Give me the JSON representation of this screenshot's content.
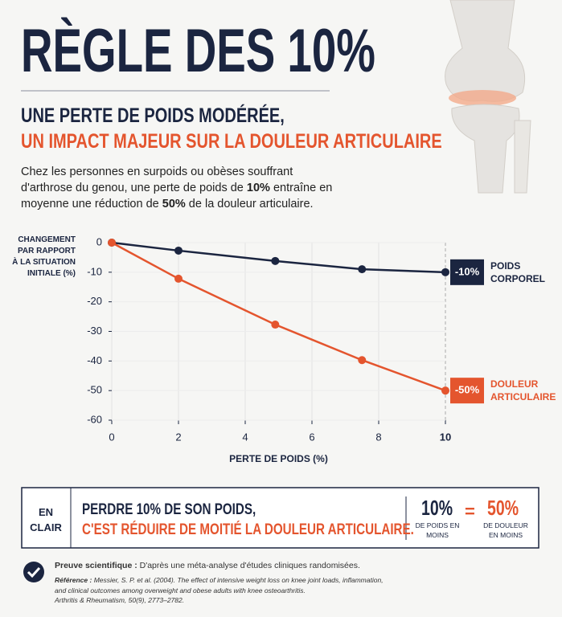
{
  "header": {
    "title": "RÈGLE DES 10%",
    "subtitle_line1": "UNE PERTE DE POIDS MODÉRÉE,",
    "subtitle_line2": "UN IMPACT MAJEUR SUR LA DOULEUR ARTICULAIRE",
    "intro": [
      "Chez les personnes en surpoids ou obèses souffrant d'arthrose du genou, une perte de poids de ",
      "10%",
      " entraîne en moyenne une réduction de ",
      "50%",
      " de la douleur articulaire."
    ]
  },
  "chart_data": {
    "type": "line",
    "y_label": "CHANGEMENT PAR RAPPORT À LA SITUATION INITIALE (%)",
    "x_label": "PERTE DE POIDS (%)",
    "x": [
      0,
      2,
      4.9,
      7.5,
      10
    ],
    "series": [
      {
        "name": "POIDS CORPOREL",
        "color": "#1b2540",
        "values": [
          0,
          -2.7,
          -6.2,
          -9,
          -10
        ],
        "value_labels": [
          null,
          null,
          null,
          null,
          "-10%"
        ]
      },
      {
        "name": "DOULEUR ARTICULAIRE",
        "color": "#e4552e",
        "values": [
          0,
          -12.2,
          -27.7,
          -39.7,
          -50
        ],
        "value_labels": [
          null,
          null,
          null,
          null,
          "-50%"
        ]
      }
    ],
    "xlim": [
      0,
      10
    ],
    "xticks": [
      0,
      2,
      4,
      6,
      8,
      10
    ],
    "ylim": [
      -60,
      0
    ],
    "yticks": [
      0,
      -10,
      -20,
      -30,
      -40,
      -50,
      -60
    ],
    "grid": true
  },
  "summary": {
    "label": "EN CLAIR",
    "line1": "PERDRE 10% DE SON POIDS,",
    "line2": "C'EST RÉDUIRE DE MOITIÉ LA DOULEUR ARTICULAIRE.",
    "stat1": {
      "value": "10%",
      "caption": "DE POIDS EN MOINS"
    },
    "equals": "=",
    "stat2": {
      "value": "50%",
      "caption": "DE DOULEUR EN MOINS"
    }
  },
  "footer": {
    "proof_title": "Preuve scientifique :",
    "proof_text": "D'après une méta-analyse d'études cliniques randomisées.",
    "reference_label": "Référence :",
    "reference_text": "Messier, S. P. et al. (2004). The effect of intensive weight loss on knee joint loads, inflammation, and clinical outcomes among overweight and obese adults with knee osteoarthritis.",
    "journal": "Arthritis & Rheumatism, 50(9), 2773–2782."
  }
}
